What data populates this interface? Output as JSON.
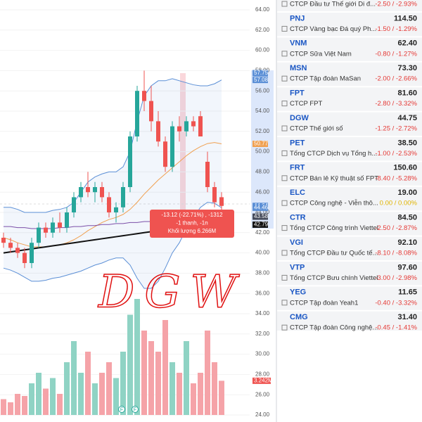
{
  "chart_data": {
    "type": "candlestick",
    "ylim": [
      24,
      64
    ],
    "yticks": [
      {
        "value": 24,
        "label": "24.00"
      },
      {
        "value": 26,
        "label": "26.00"
      },
      {
        "value": 28,
        "label": "28.00"
      },
      {
        "value": 30,
        "label": "30.00"
      },
      {
        "value": 32,
        "label": "32.00"
      },
      {
        "value": 34,
        "label": "34.00"
      },
      {
        "value": 36,
        "label": "36.00"
      },
      {
        "value": 38,
        "label": "38.00"
      },
      {
        "value": 40,
        "label": "40.00"
      },
      {
        "value": 42,
        "label": "42.00"
      },
      {
        "value": 44,
        "label": "44.00"
      },
      {
        "value": 46,
        "label": "46.00"
      },
      {
        "value": 48,
        "label": "48.00"
      },
      {
        "value": 50,
        "label": "50.00"
      },
      {
        "value": 52,
        "label": "52.00"
      },
      {
        "value": 54,
        "label": "54.00"
      },
      {
        "value": 56,
        "label": "56.00"
      },
      {
        "value": 58,
        "label": "58.00"
      },
      {
        "value": 60,
        "label": "60.00"
      },
      {
        "value": 62,
        "label": "62.00"
      },
      {
        "value": 64,
        "label": "64.00"
      }
    ],
    "open": [
      41.5,
      41,
      40.5,
      40,
      39,
      41,
      42.5,
      42,
      43,
      42.5,
      44,
      45.5,
      46.5,
      46,
      46.5,
      45.5,
      44,
      44.5,
      46.5,
      51.5,
      56,
      55,
      53,
      51,
      48.5,
      52.5,
      52,
      53,
      53.5,
      49,
      46.5,
      45.5
    ],
    "high": [
      42,
      41.5,
      41,
      40.5,
      41.5,
      43,
      43,
      43.5,
      44,
      44.5,
      46,
      47,
      48,
      47,
      47,
      46,
      45,
      47,
      52,
      56.5,
      58,
      56.5,
      54,
      51.5,
      53,
      53.5,
      53.5,
      53.5,
      54,
      50,
      47,
      46
    ],
    "low": [
      40.5,
      40,
      39.5,
      38.5,
      38.5,
      40.5,
      41.5,
      41.5,
      42,
      42,
      43.5,
      45,
      45.5,
      45,
      45,
      43.5,
      43,
      44,
      46,
      51,
      54,
      52,
      50.5,
      48,
      48,
      51,
      51.5,
      52,
      51.5,
      46,
      44.5,
      44
    ],
    "close": [
      41,
      40.5,
      40,
      39,
      41,
      42.5,
      42,
      43,
      42.5,
      44,
      45.5,
      46.5,
      46,
      46.5,
      45.5,
      44,
      44.5,
      46.5,
      51.5,
      56,
      55,
      53,
      51,
      48.5,
      52.5,
      52,
      53,
      52.5,
      51.5,
      46.5,
      45,
      44.64
    ],
    "volume": [
      1.5,
      1.2,
      2,
      1.8,
      3,
      4,
      2.5,
      3.5,
      2,
      5,
      7,
      4,
      6,
      3,
      4,
      5,
      3.5,
      6,
      9.5,
      11,
      8,
      7,
      6,
      9,
      5,
      4,
      7,
      3,
      4,
      8,
      5,
      3.242
    ],
    "volume_ylim": [
      0,
      12
    ],
    "lines": [
      {
        "color": "#5b8fd6",
        "values": [
          44.5,
          44.5,
          44.3,
          44,
          44,
          44,
          44,
          44.2,
          44.3,
          44.5,
          45,
          46,
          47,
          47.5,
          47.8,
          48,
          48,
          48.5,
          50,
          53,
          55.5,
          56.5,
          57,
          57,
          57.2,
          57,
          56.8,
          56.6,
          56.5,
          56.5,
          56.7,
          57.08
        ]
      },
      {
        "color": "#f0a050",
        "values": [
          41.5,
          41.3,
          41,
          40.8,
          40.6,
          40.6,
          40.6,
          40.7,
          40.8,
          41,
          41.3,
          41.7,
          42.2,
          42.6,
          43,
          43.3,
          43.5,
          43.8,
          44.3,
          45,
          45.8,
          46.5,
          47.2,
          47.8,
          48.4,
          49,
          49.6,
          50.1,
          50.5,
          50.8,
          50.9,
          50.77
        ]
      },
      {
        "color": "#5b8fd6",
        "values": [
          38.5,
          38.3,
          38,
          37.6,
          37.2,
          37.2,
          37.3,
          37.5,
          37.6,
          37.8,
          38,
          38.2,
          38.5,
          38.8,
          39,
          39.3,
          39.5,
          39.5,
          38.8,
          37.5,
          36.5,
          36.5,
          37.2,
          38.5,
          40,
          41,
          42.4,
          43.5,
          44.5,
          45,
          44.9,
          44.46
        ]
      },
      {
        "color": "#7b4fa8",
        "values": [
          42.6,
          42.6,
          42.5,
          42.5,
          42.4,
          42.4,
          42.4,
          42.4,
          42.5,
          42.5,
          42.6,
          42.6,
          42.7,
          42.7,
          42.8,
          42.8,
          42.9,
          42.9,
          43,
          43,
          43.1,
          43.1,
          43.2,
          43.2,
          43.3,
          43.3,
          43.4,
          43.4,
          43.5,
          43.5,
          43.55,
          43.58
        ]
      },
      {
        "color": "#111111",
        "values": [
          40,
          40.1,
          40.2,
          40.3,
          40.4,
          40.5,
          40.6,
          40.7,
          40.8,
          40.9,
          41,
          41.1,
          41.2,
          41.3,
          41.4,
          41.5,
          41.6,
          41.7,
          41.8,
          41.9,
          42,
          42.1,
          42.2,
          42.3,
          42.4,
          42.5,
          42.6,
          42.7,
          42.7,
          42.75,
          42.78,
          42.79
        ]
      }
    ],
    "price_labels": [
      {
        "value": 57.75,
        "color": "#5b8fd6"
      },
      {
        "value": 57.08,
        "color": "#5b8fd6"
      },
      {
        "value": 50.77,
        "color": "#f0a050"
      },
      {
        "value": 44.64,
        "color": "#5b8fd6"
      },
      {
        "value": 44.46,
        "color": "#5b8fd6"
      },
      {
        "value": 43.58,
        "color": "#444a5a"
      },
      {
        "value": 42.79,
        "color": "#111111"
      }
    ],
    "volume_label": "3.242M",
    "tooltip": [
      "-13.12 (-22.71%) , -1312",
      "-1 thanh, -1n",
      "Khối lượng 6.266M"
    ],
    "markers": [
      "F",
      "F"
    ],
    "annotation": "DGW"
  },
  "watchlist": [
    {
      "symbol": "",
      "price": "",
      "name": "CTCP Đầu tư Thế giới Di đ...",
      "change": "-2.50 / -2.93%"
    },
    {
      "symbol": "PNJ",
      "price": "114.50",
      "name": "CTCP Vàng bạc Đá quý Ph...",
      "change": "-1.50 / -1.29%"
    },
    {
      "symbol": "VNM",
      "price": "62.40",
      "name": "CTCP Sữa Việt Nam",
      "change": "-0.80 / -1.27%"
    },
    {
      "symbol": "MSN",
      "price": "73.30",
      "name": "CTCP Tập đoàn MaSan",
      "change": "-2.00 / -2.66%"
    },
    {
      "symbol": "FPT",
      "price": "81.60",
      "name": "CTCP FPT",
      "change": "-2.80 / -3.32%"
    },
    {
      "symbol": "DGW",
      "price": "44.75",
      "name": "CTCP Thế giới số",
      "change": "-1.25 / -2.72%"
    },
    {
      "symbol": "PET",
      "price": "38.50",
      "name": "Tổng CTCP Dịch vụ Tổng h...",
      "change": "-1.00 / -2.53%"
    },
    {
      "symbol": "FRT",
      "price": "150.60",
      "name": "CTCP Bán lẻ Kỹ thuật số FPT",
      "change": "-8.40 / -5.28%"
    },
    {
      "symbol": "ELC",
      "price": "19.00",
      "name": "CTCP Công nghệ - Viễn thô...",
      "change": "0.00 / 0.00%"
    },
    {
      "symbol": "CTR",
      "price": "84.50",
      "name": "Tổng CTCP Công trình Viettel",
      "change": "-2.50 / -2.87%"
    },
    {
      "symbol": "VGI",
      "price": "92.10",
      "name": "Tổng CTCP Đầu tư Quốc tế...",
      "change": "-8.10 / -8.08%"
    },
    {
      "symbol": "VTP",
      "price": "97.60",
      "name": "Tổng CTCP Bưu chính Viettel",
      "change": "-3.00 / -2.98%"
    },
    {
      "symbol": "YEG",
      "price": "11.65",
      "name": "CTCP Tập đoàn Yeah1",
      "change": "-0.40 / -3.32%"
    },
    {
      "symbol": "CMG",
      "price": "31.40",
      "name": "CTCP Tập đoàn Công nghệ...",
      "change": "-0.45 / -1.41%"
    }
  ]
}
